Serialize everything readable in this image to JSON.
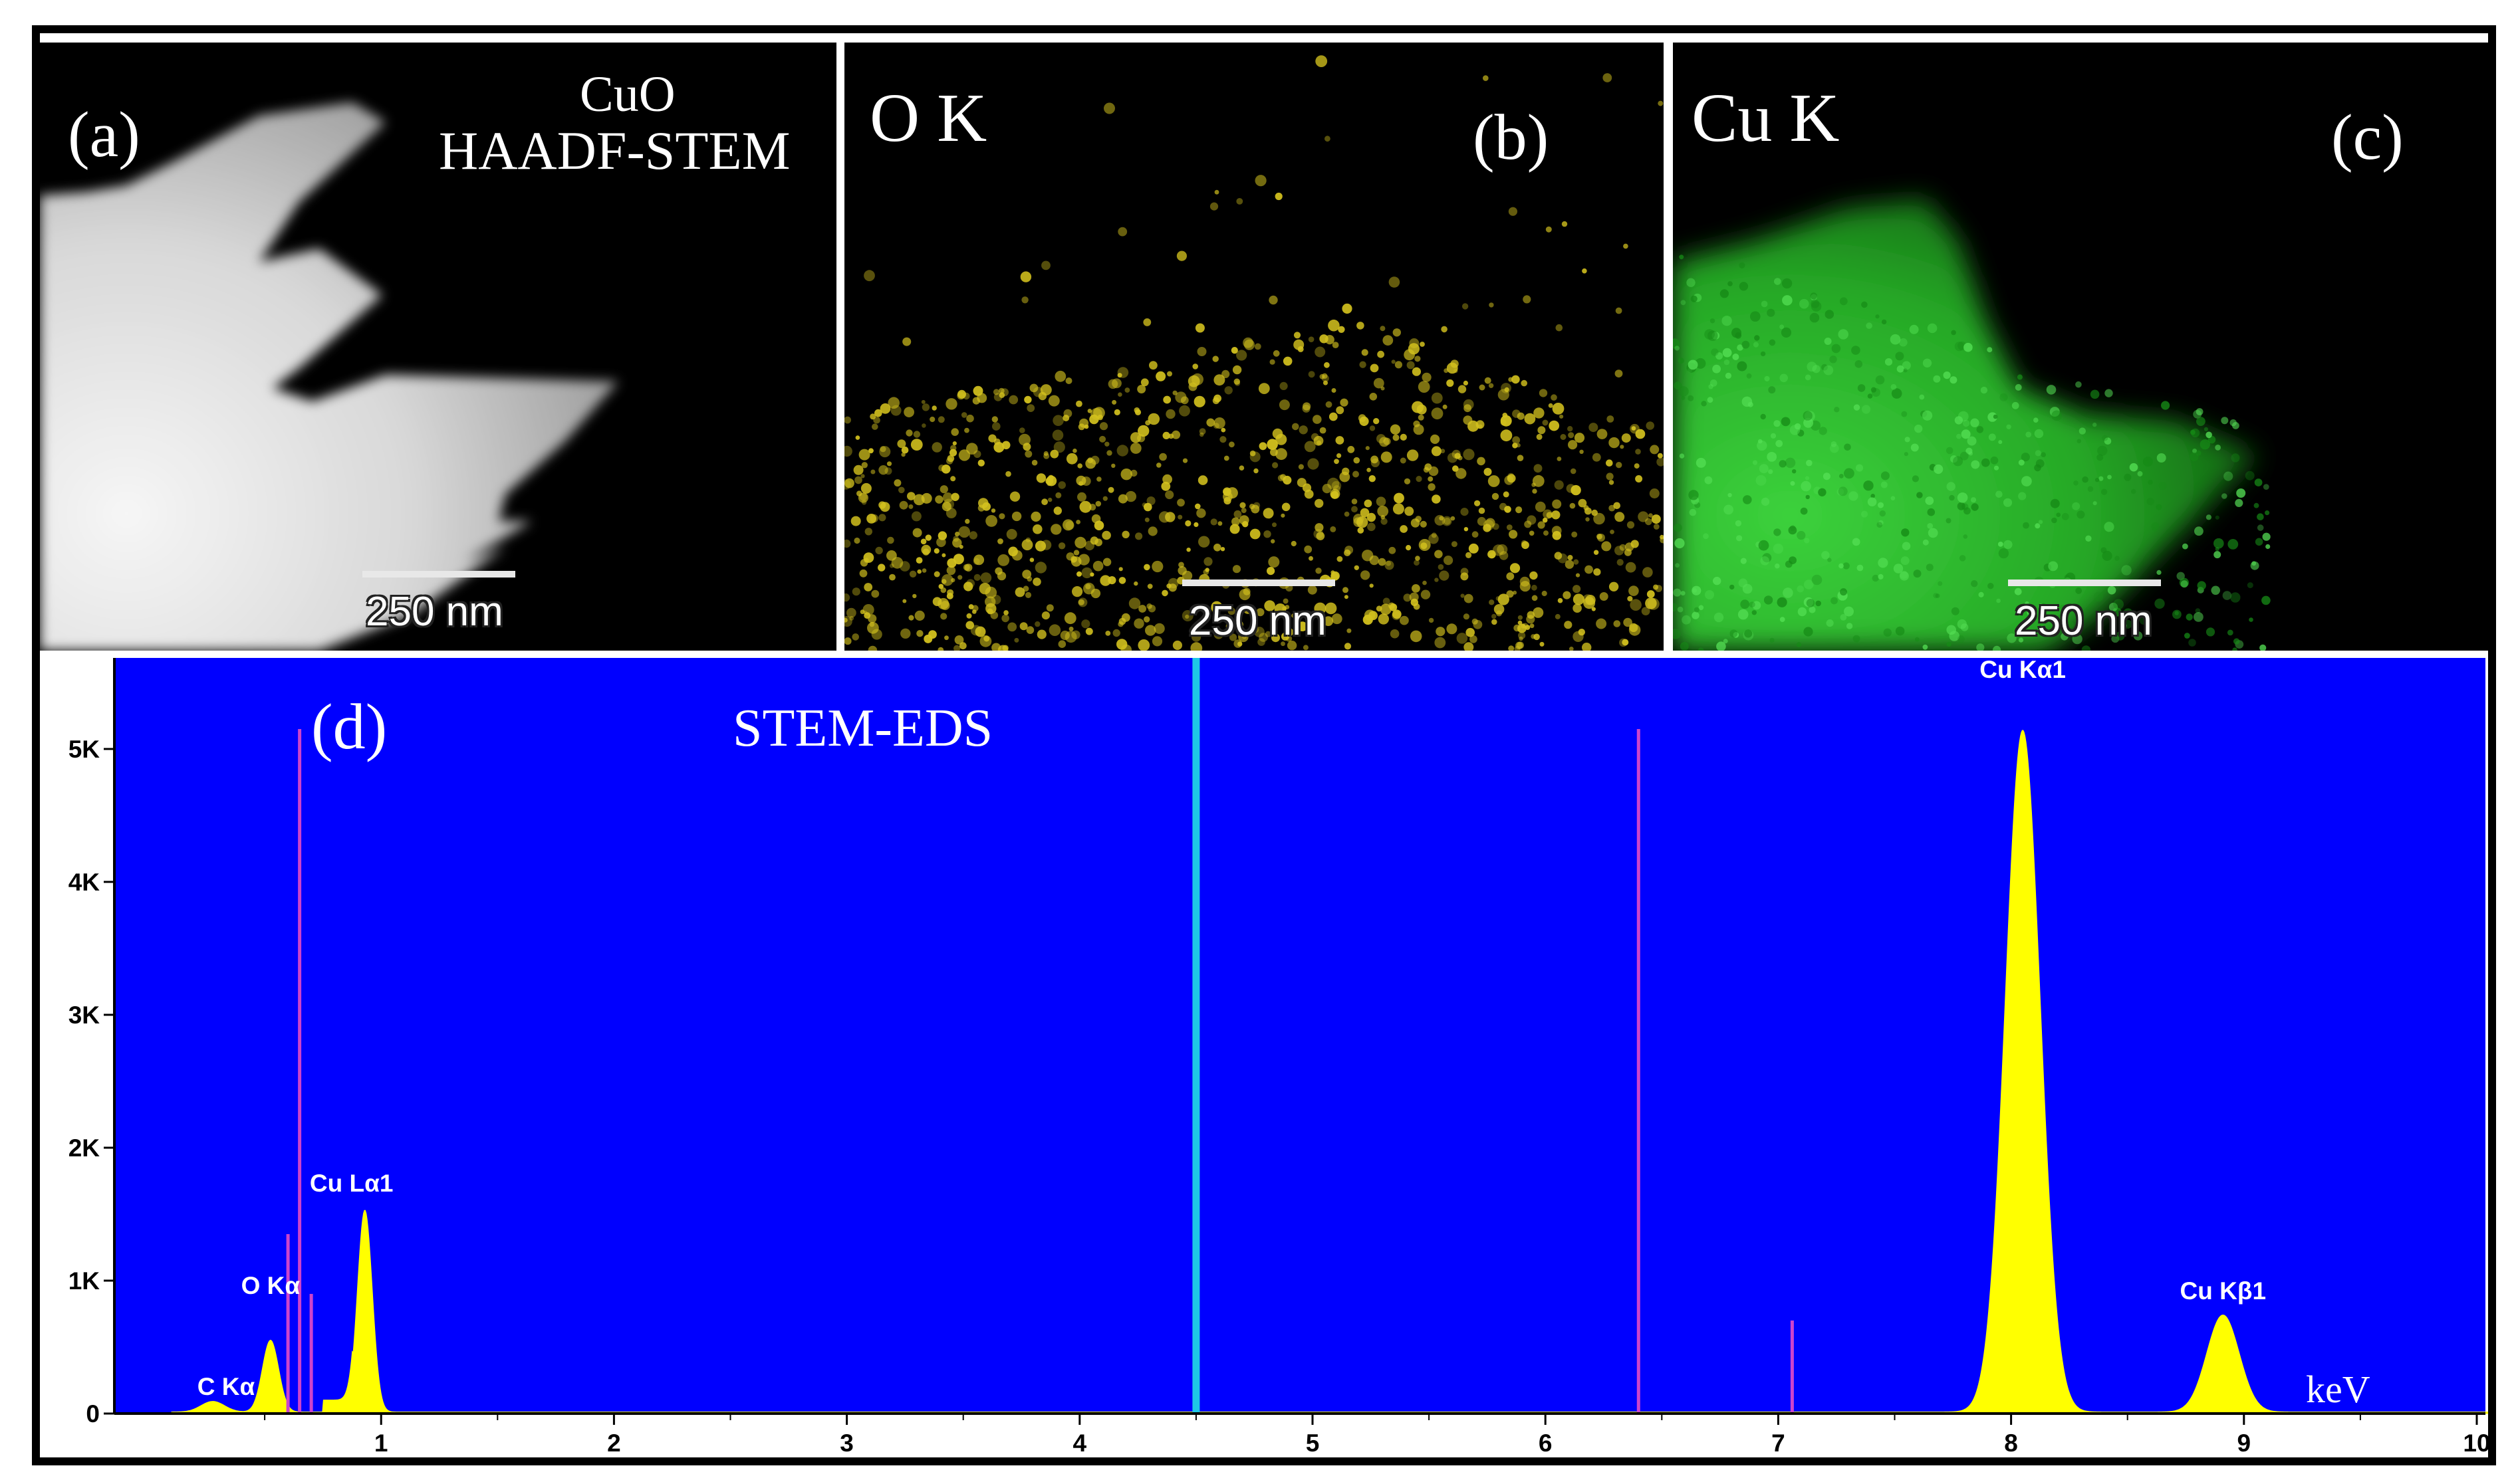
{
  "panels": {
    "a": {
      "tag": "(a)",
      "line1": "CuO",
      "line2": "HAADF-STEM",
      "scale": "250 nm"
    },
    "b": {
      "tag": "(b)",
      "title": "O K",
      "scale": "250 nm",
      "color": "#d4c21e"
    },
    "c": {
      "tag": "(c)",
      "title": "Cu K",
      "scale": "250 nm",
      "color": "#28c828"
    }
  },
  "spectrum": {
    "tag": "(d)",
    "title": "STEM-EDS",
    "unit": "keV",
    "colors": {
      "background": "#0000ff",
      "fill": "#ffff00",
      "marker": "#cc44cc",
      "cursor": "#1ec8e6"
    }
  },
  "chart_data": {
    "type": "area",
    "title": "STEM-EDS",
    "xlabel": "keV",
    "ylabel": "",
    "xlim": [
      0,
      10.2
    ],
    "ylim": [
      0,
      5300
    ],
    "x_ticks": [
      1,
      2,
      3,
      4,
      5,
      6,
      7,
      8,
      9,
      10
    ],
    "y_ticks": [
      {
        "value": 0,
        "label": "0"
      },
      {
        "value": 1000,
        "label": "1K"
      },
      {
        "value": 2000,
        "label": "2K"
      },
      {
        "value": 3000,
        "label": "3K"
      },
      {
        "value": 4000,
        "label": "4K"
      },
      {
        "value": 5000,
        "label": "5K"
      }
    ],
    "peaks": [
      {
        "label": "C Kα",
        "energy": 0.277,
        "counts": 80
      },
      {
        "label": "O Kα",
        "energy": 0.525,
        "counts": 540
      },
      {
        "label": "Cu Lα1",
        "energy": 0.93,
        "counts": 1520
      },
      {
        "label": "Cu Kα1",
        "energy": 8.05,
        "counts": 5130
      },
      {
        "label": "Cu Kβ1",
        "energy": 8.91,
        "counts": 730
      }
    ],
    "markers": [
      {
        "energy": 0.6,
        "counts": 1350
      },
      {
        "energy": 0.7,
        "counts": 900
      },
      {
        "energy": 6.4,
        "counts": 5150
      },
      {
        "energy": 7.06,
        "counts": 700
      }
    ],
    "tall_markers": [
      {
        "energy": 0.65,
        "counts": 5150
      }
    ],
    "cursor": {
      "energy": 4.5
    },
    "grid": false,
    "legend": "none"
  }
}
